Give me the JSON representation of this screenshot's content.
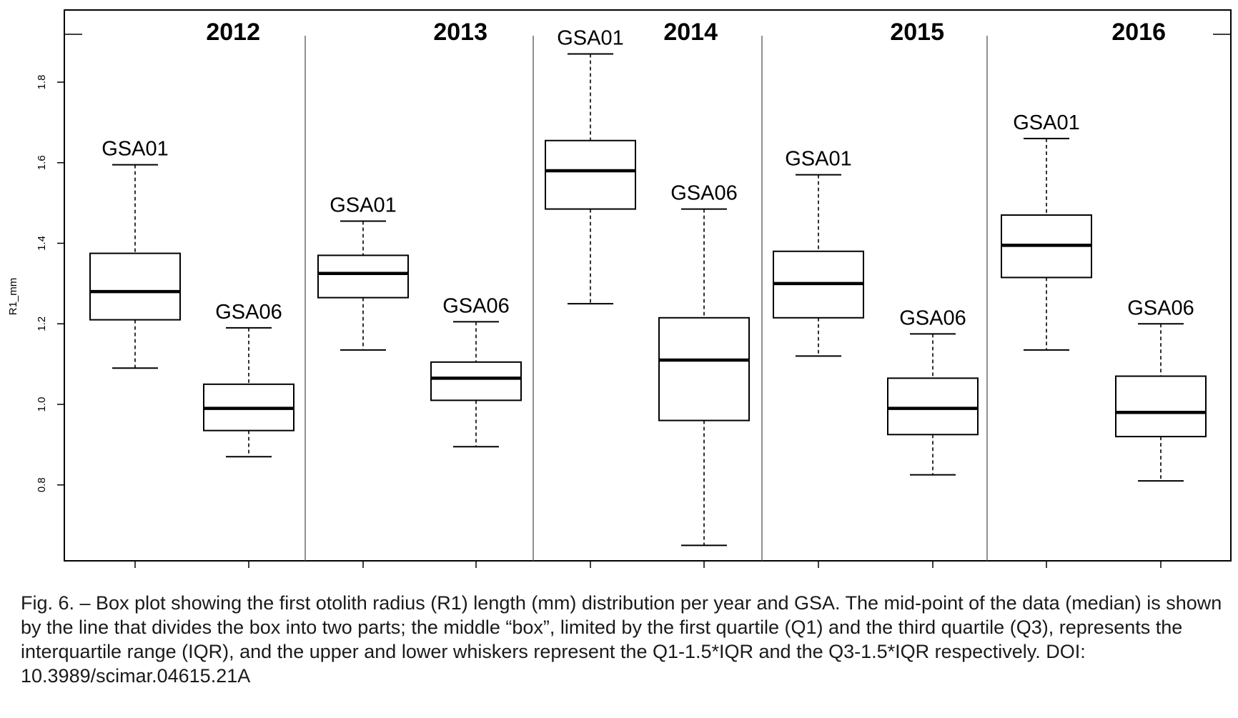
{
  "chart_data": {
    "type": "box",
    "ylabel": "R1_mm",
    "ylim": [
      0.63,
      1.95
    ],
    "yticks": [
      0.8,
      1.0,
      1.2,
      1.4,
      1.6,
      1.8
    ],
    "ytick_labels": [
      "0.8",
      "1.0",
      "1.2",
      "1.4",
      "1.6",
      "1.8"
    ],
    "years": [
      "2012",
      "2013",
      "2014",
      "2015",
      "2016"
    ],
    "boxes": [
      {
        "year": "2012",
        "group": "GSA01",
        "whisker_low": 1.09,
        "q1": 1.21,
        "median": 1.28,
        "q3": 1.375,
        "whisker_high": 1.595
      },
      {
        "year": "2012",
        "group": "GSA06",
        "whisker_low": 0.87,
        "q1": 0.935,
        "median": 0.99,
        "q3": 1.05,
        "whisker_high": 1.19
      },
      {
        "year": "2013",
        "group": "GSA01",
        "whisker_low": 1.135,
        "q1": 1.265,
        "median": 1.325,
        "q3": 1.37,
        "whisker_high": 1.455
      },
      {
        "year": "2013",
        "group": "GSA06",
        "whisker_low": 0.895,
        "q1": 1.01,
        "median": 1.065,
        "q3": 1.105,
        "whisker_high": 1.205
      },
      {
        "year": "2014",
        "group": "GSA01",
        "whisker_low": 1.25,
        "q1": 1.485,
        "median": 1.58,
        "q3": 1.655,
        "whisker_high": 1.87
      },
      {
        "year": "2014",
        "group": "GSA06",
        "whisker_low": 0.65,
        "q1": 0.96,
        "median": 1.11,
        "q3": 1.215,
        "whisker_high": 1.485
      },
      {
        "year": "2015",
        "group": "GSA01",
        "whisker_low": 1.12,
        "q1": 1.215,
        "median": 1.3,
        "q3": 1.38,
        "whisker_high": 1.57
      },
      {
        "year": "2015",
        "group": "GSA06",
        "whisker_low": 0.825,
        "q1": 0.925,
        "median": 0.99,
        "q3": 1.065,
        "whisker_high": 1.175
      },
      {
        "year": "2016",
        "group": "GSA01",
        "whisker_low": 1.135,
        "q1": 1.315,
        "median": 1.395,
        "q3": 1.47,
        "whisker_high": 1.66
      },
      {
        "year": "2016",
        "group": "GSA06",
        "whisker_low": 0.81,
        "q1": 0.92,
        "median": 0.98,
        "q3": 1.07,
        "whisker_high": 1.2
      }
    ],
    "grid": false,
    "legend": "none"
  },
  "caption": "Fig. 6. – Box plot showing the first otolith radius (R1) length (mm) distribution per year and GSA. The mid-point of the data (median) is shown by the line that divides the box into two parts; the middle “box”, limited by the first quartile (Q1) and the third quartile (Q3), represents the interquartile range (IQR), and the upper and lower whiskers represent the Q1-1.5*IQR and the Q3-1.5*IQR respectively. DOI: 10.3989/scimar.04615.21A"
}
